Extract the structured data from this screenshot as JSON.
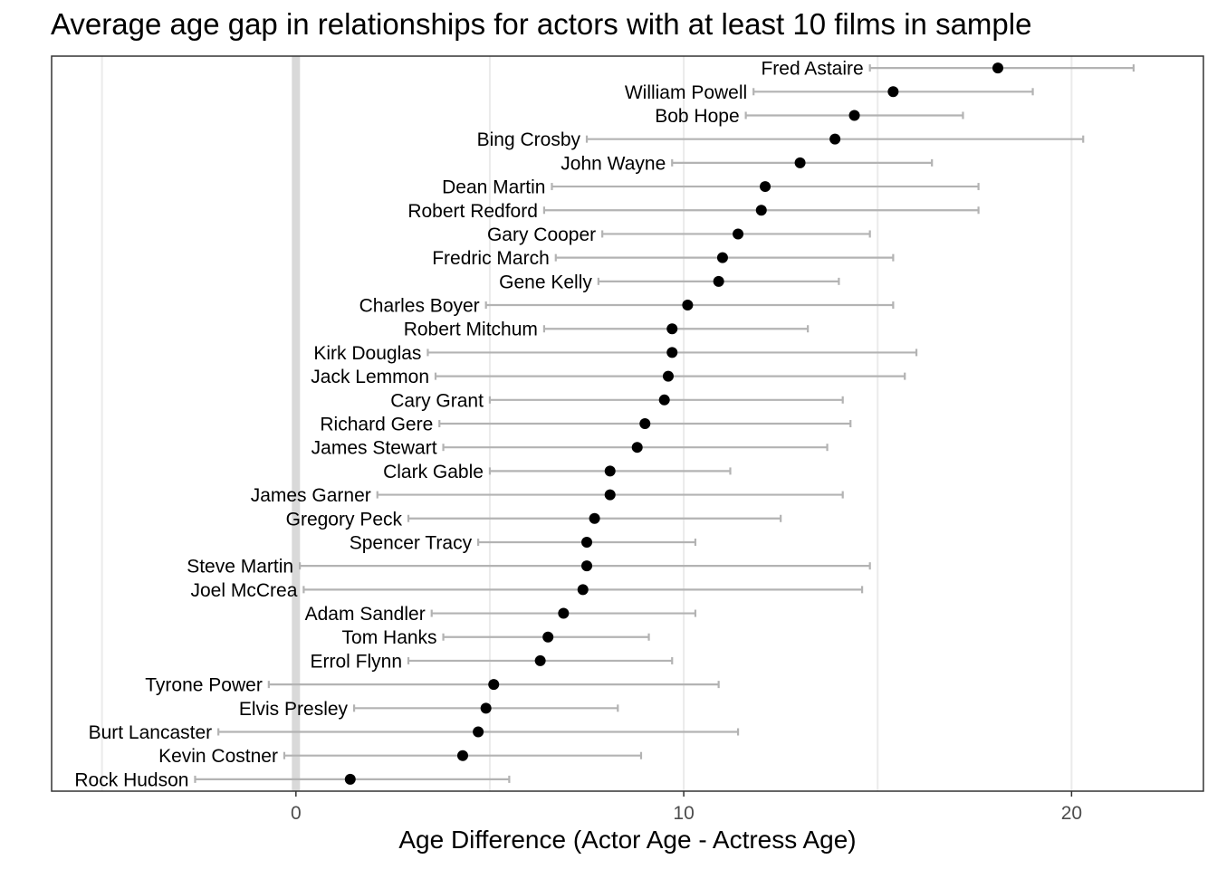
{
  "chart_data": {
    "type": "scatter",
    "title": "Average age gap in relationships for actors with at least 10 films in sample",
    "xlabel": "Age Difference (Actor Age - Actress Age)",
    "ylabel": "",
    "xlim": [
      -6.3,
      23.4
    ],
    "xticks": [
      0,
      10,
      20
    ],
    "grid": true,
    "series": [
      {
        "actor": "Fred Astaire",
        "mean": 18.1,
        "low": 14.8,
        "high": 21.6
      },
      {
        "actor": "William Powell",
        "mean": 15.4,
        "low": 11.8,
        "high": 19.0
      },
      {
        "actor": "Bob Hope",
        "mean": 14.4,
        "low": 11.6,
        "high": 17.2
      },
      {
        "actor": "Bing Crosby",
        "mean": 13.9,
        "low": 7.5,
        "high": 20.3
      },
      {
        "actor": "John Wayne",
        "mean": 13.0,
        "low": 9.7,
        "high": 16.4
      },
      {
        "actor": "Dean Martin",
        "mean": 12.1,
        "low": 6.6,
        "high": 17.6
      },
      {
        "actor": "Robert Redford",
        "mean": 12.0,
        "low": 6.4,
        "high": 17.6
      },
      {
        "actor": "Gary Cooper",
        "mean": 11.4,
        "low": 7.9,
        "high": 14.8
      },
      {
        "actor": "Fredric March",
        "mean": 11.0,
        "low": 6.7,
        "high": 15.4
      },
      {
        "actor": "Gene Kelly",
        "mean": 10.9,
        "low": 7.8,
        "high": 14.0
      },
      {
        "actor": "Charles Boyer",
        "mean": 10.1,
        "low": 4.9,
        "high": 15.4
      },
      {
        "actor": "Robert Mitchum",
        "mean": 9.7,
        "low": 6.4,
        "high": 13.2
      },
      {
        "actor": "Kirk Douglas",
        "mean": 9.7,
        "low": 3.4,
        "high": 16.0
      },
      {
        "actor": "Jack Lemmon",
        "mean": 9.6,
        "low": 3.6,
        "high": 15.7
      },
      {
        "actor": "Cary Grant",
        "mean": 9.5,
        "low": 5.0,
        "high": 14.1
      },
      {
        "actor": "Richard Gere",
        "mean": 9.0,
        "low": 3.7,
        "high": 14.3
      },
      {
        "actor": "James Stewart",
        "mean": 8.8,
        "low": 3.8,
        "high": 13.7
      },
      {
        "actor": "Clark Gable",
        "mean": 8.1,
        "low": 5.0,
        "high": 11.2
      },
      {
        "actor": "James Garner",
        "mean": 8.1,
        "low": 2.1,
        "high": 14.1
      },
      {
        "actor": "Gregory Peck",
        "mean": 7.7,
        "low": 2.9,
        "high": 12.5
      },
      {
        "actor": "Spencer Tracy",
        "mean": 7.5,
        "low": 4.7,
        "high": 10.3
      },
      {
        "actor": "Steve Martin",
        "mean": 7.5,
        "low": 0.1,
        "high": 14.8
      },
      {
        "actor": "Joel McCrea",
        "mean": 7.4,
        "low": 0.2,
        "high": 14.6
      },
      {
        "actor": "Adam Sandler",
        "mean": 6.9,
        "low": 3.5,
        "high": 10.3
      },
      {
        "actor": "Tom Hanks",
        "mean": 6.5,
        "low": 3.8,
        "high": 9.1
      },
      {
        "actor": "Errol Flynn",
        "mean": 6.3,
        "low": 2.9,
        "high": 9.7
      },
      {
        "actor": "Tyrone Power",
        "mean": 5.1,
        "low": -0.7,
        "high": 10.9
      },
      {
        "actor": "Elvis Presley",
        "mean": 4.9,
        "low": 1.5,
        "high": 8.3
      },
      {
        "actor": "Burt Lancaster",
        "mean": 4.7,
        "low": -2.0,
        "high": 11.4
      },
      {
        "actor": "Kevin Costner",
        "mean": 4.3,
        "low": -0.3,
        "high": 8.9
      },
      {
        "actor": "Rock Hudson",
        "mean": 1.4,
        "low": -2.6,
        "high": 5.5
      }
    ],
    "colors": {
      "point": "#000000",
      "errorbar": "#b3b3b3",
      "grid": "#ebebeb",
      "zeroline": "#d9d9d9",
      "frame": "#333333",
      "tick_text": "#4d4d4d"
    }
  }
}
